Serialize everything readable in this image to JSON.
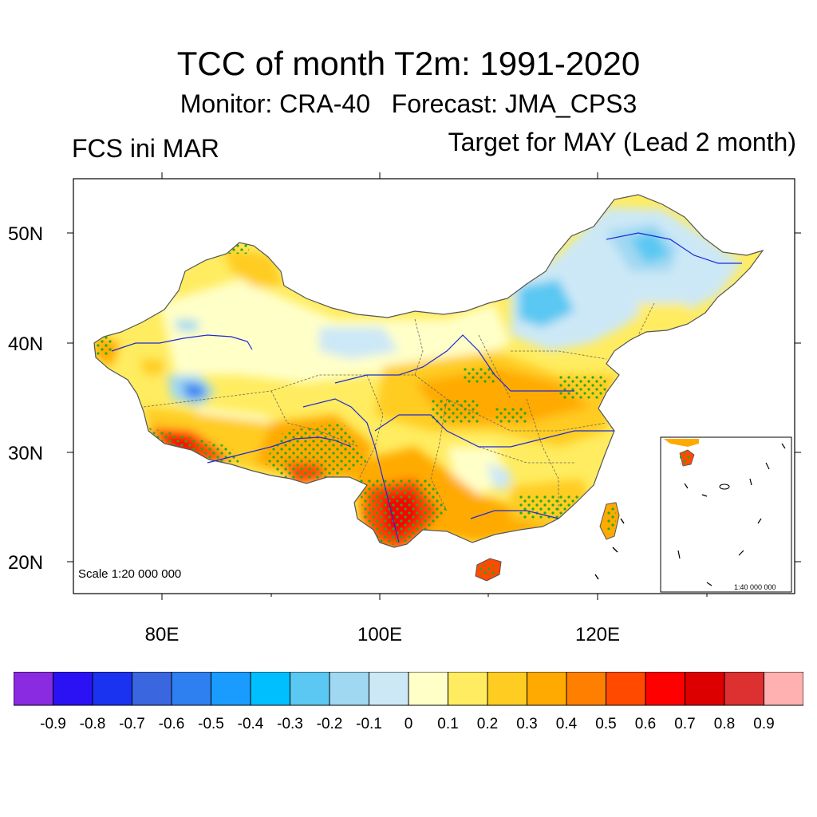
{
  "title": "TCC of month T2m: 1991-2020",
  "subtitle": "Monitor: CRA-40   Forecast: JMA_CPS3",
  "left_label": "FCS ini MAR",
  "right_label": "Target for MAY (Lead 2 month)",
  "lat_labels": [
    "50N",
    "40N",
    "30N",
    "20N"
  ],
  "lon_labels": [
    "80E",
    "100E",
    "120E"
  ],
  "scale_text": "Scale 1:20 000 000",
  "inset_scale_text": "1:40 000 000",
  "colorbar": {
    "labels": [
      "-0.9",
      "-0.8",
      "-0.7",
      "-0.6",
      "-0.5",
      "-0.4",
      "-0.3",
      "-0.2",
      "-0.1",
      "0",
      "0.1",
      "0.2",
      "0.3",
      "0.4",
      "0.5",
      "0.6",
      "0.7",
      "0.8",
      "0.9"
    ],
    "colors": [
      "#8a2be2",
      "#2a12f5",
      "#1a33f0",
      "#3a66e0",
      "#2e7ff0",
      "#1a9cff",
      "#00bfff",
      "#5ac8f2",
      "#a0d8f2",
      "#cce8f6",
      "#ffffc8",
      "#ffec60",
      "#ffcc22",
      "#ffaa00",
      "#ff8000",
      "#ff4a00",
      "#ff0000",
      "#dd0000",
      "#dd3030",
      "#ffb0b0"
    ]
  },
  "colors": {
    "frame": "#000000",
    "coast": "#555555",
    "river": "#1e2ad6",
    "stipple": "#22aa22"
  }
}
